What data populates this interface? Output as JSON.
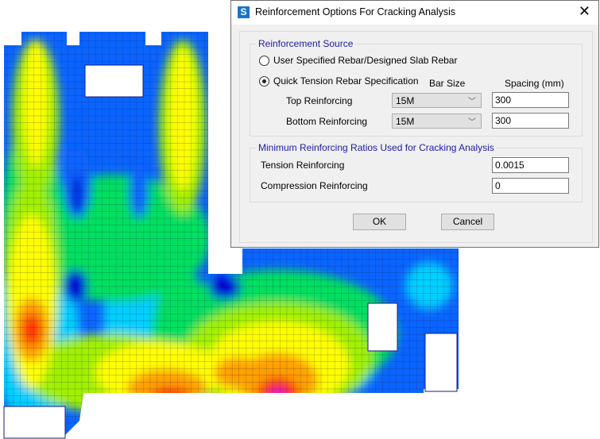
{
  "dialog": {
    "title": "Reinforcement Options For Cracking Analysis",
    "app_icon_letter": "S",
    "close_glyph": "✕",
    "source_group": {
      "legend": "Reinforcement Source",
      "options": [
        {
          "label": "User Specified Rebar/Designed Slab Rebar",
          "selected": false
        },
        {
          "label": "Quick Tension Rebar Specification",
          "selected": true
        }
      ],
      "bar_size_header": "Bar Size",
      "spacing_header": "Spacing (mm)",
      "rows": [
        {
          "label": "Top Reinforcing",
          "bar_size": "15M",
          "spacing": "300"
        },
        {
          "label": "Bottom Reinforcing",
          "bar_size": "15M",
          "spacing": "300"
        }
      ]
    },
    "ratios_group": {
      "legend": "Minimum Reinforcing Ratios Used for Cracking Analysis",
      "rows": [
        {
          "label": "Tension Reinforcing",
          "value": "0.0015"
        },
        {
          "label": "Compression Reinforcing",
          "value": "0"
        }
      ]
    },
    "ok_label": "OK",
    "cancel_label": "Cancel"
  },
  "plot": {
    "colors": [
      "#0000d8",
      "#0a64ff",
      "#00d0ff",
      "#00e060",
      "#a0f000",
      "#ffff00",
      "#ffa000",
      "#ff3000",
      "#e000e0"
    ]
  }
}
